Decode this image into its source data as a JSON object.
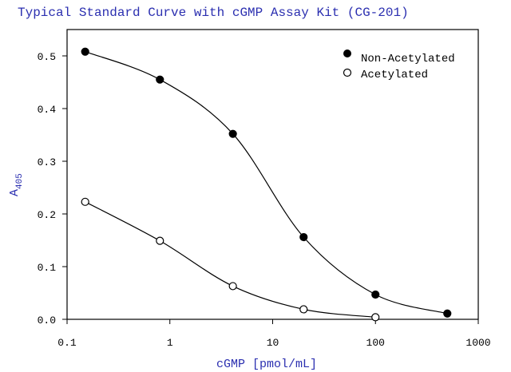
{
  "chart_data": {
    "type": "scatter",
    "title": "Typical Standard Curve with cGMP Assay Kit (CG-201)",
    "xlabel": "cGMP [pmol/mL]",
    "ylabel_main": "A",
    "ylabel_sub": "405",
    "xscale": "log",
    "xlim": [
      0.1,
      1000
    ],
    "ylim": [
      0.0,
      0.55
    ],
    "x_tick_labels": [
      "0.1",
      "1",
      "10",
      "100",
      "1000"
    ],
    "x_ticks": [
      0.1,
      1,
      10,
      100,
      1000
    ],
    "y_tick_labels": [
      "0.0",
      "0.1",
      "0.2",
      "0.3",
      "0.4",
      "0.5"
    ],
    "y_ticks": [
      0.0,
      0.1,
      0.2,
      0.3,
      0.4,
      0.5
    ],
    "grid": false,
    "legend_position": "top-right",
    "series": [
      {
        "name": "Non-Acetylated",
        "marker": "filled-circle",
        "x": [
          0.15,
          0.8,
          4.1,
          20,
          100,
          500
        ],
        "y": [
          0.508,
          0.455,
          0.352,
          0.156,
          0.047,
          0.011
        ]
      },
      {
        "name": "Acetylated",
        "marker": "open-circle",
        "x": [
          0.15,
          0.8,
          4.1,
          20,
          100
        ],
        "y": [
          0.223,
          0.149,
          0.063,
          0.019,
          0.004
        ]
      }
    ]
  }
}
